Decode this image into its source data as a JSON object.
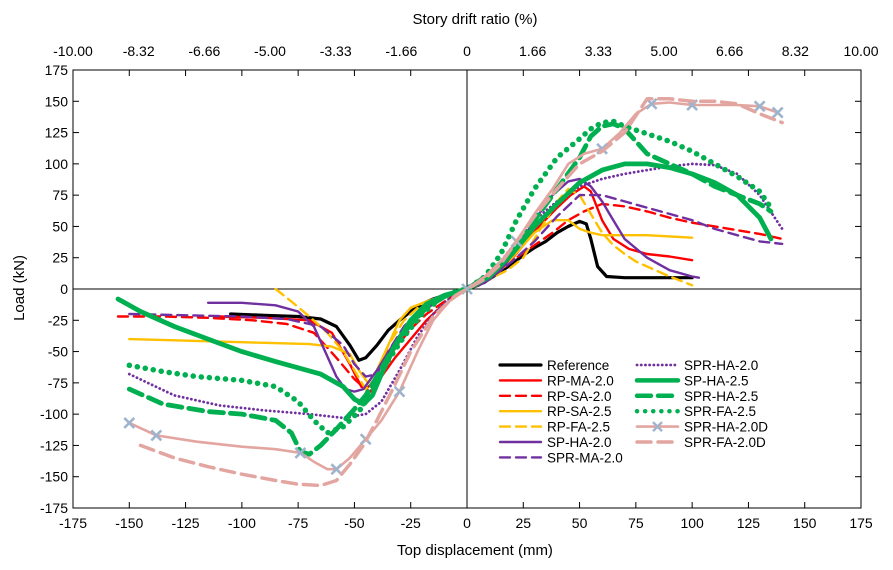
{
  "chart_data": {
    "type": "line",
    "title": "",
    "xlabel": "Top displacement (mm)",
    "ylabel": "Load (kN)",
    "x2label": "Story drift ratio (%)",
    "xlim": [
      -175,
      175
    ],
    "ylim": [
      -175,
      175
    ],
    "x_ticks": [
      "-175",
      "-150",
      "-125",
      "-100",
      "-75",
      "-50",
      "-25",
      "0",
      "25",
      "50",
      "75",
      "100",
      "125",
      "150",
      "175"
    ],
    "y_ticks": [
      "-175",
      "-150",
      "-125",
      "-100",
      "-75",
      "-50",
      "-25",
      "0",
      "25",
      "50",
      "75",
      "100",
      "125",
      "150",
      "175"
    ],
    "x2_ticks": [
      "-10.00",
      "-8.32",
      "-6.66",
      "-5.00",
      "-3.33",
      "-1.66",
      "0",
      "1.66",
      "3.33",
      "5.00",
      "6.66",
      "8.32",
      "10.00"
    ],
    "grid": false,
    "legend_position": "bottom-right",
    "series": [
      {
        "name": "Reference",
        "color": "#000000",
        "style": "solid",
        "width": 3.2,
        "marker": "",
        "x": [
          -105,
          -90,
          -75,
          -65,
          -58,
          -52,
          -48,
          -45,
          -40,
          -35,
          -30,
          -25,
          -20,
          -15,
          -10,
          -5,
          0,
          5,
          10,
          15,
          20,
          25,
          30,
          35,
          40,
          45,
          50,
          53,
          55,
          58,
          62,
          70,
          80,
          90,
          100
        ],
        "y": [
          -20,
          -21,
          -22,
          -24,
          -30,
          -45,
          -57,
          -55,
          -45,
          -33,
          -25,
          -18,
          -12,
          -8,
          -5,
          -2,
          0,
          3,
          8,
          14,
          20,
          27,
          33,
          38,
          45,
          50,
          54,
          52,
          40,
          18,
          10,
          9,
          9,
          9,
          9
        ]
      },
      {
        "name": "RP-MA-2.0",
        "color": "#ff0000",
        "style": "solid",
        "width": 2.4,
        "marker": "",
        "x": [
          -110,
          -90,
          -70,
          -60,
          -52,
          -47,
          -43,
          -38,
          -32,
          -25,
          -18,
          -12,
          -6,
          0,
          6,
          12,
          18,
          25,
          32,
          40,
          46,
          52,
          55,
          60,
          65,
          72,
          80,
          90,
          100
        ],
        "y": [
          -22,
          -23,
          -25,
          -35,
          -60,
          -78,
          -82,
          -70,
          -55,
          -40,
          -25,
          -15,
          -7,
          0,
          5,
          12,
          20,
          35,
          50,
          65,
          75,
          82,
          78,
          55,
          40,
          32,
          28,
          26,
          23
        ]
      },
      {
        "name": "RP-SA-2.0",
        "color": "#ff0000",
        "style": "dash",
        "width": 2.4,
        "marker": "",
        "x": [
          -155,
          -135,
          -115,
          -95,
          -80,
          -68,
          -58,
          -50,
          -45,
          -40,
          -33,
          -25,
          -18,
          -10,
          -5,
          0,
          5,
          10,
          15,
          22,
          30,
          38,
          45,
          52,
          60,
          70,
          80,
          90,
          100,
          110,
          120,
          130,
          140
        ],
        "y": [
          -22,
          -22,
          -23,
          -25,
          -28,
          -35,
          -55,
          -72,
          -80,
          -72,
          -50,
          -32,
          -20,
          -10,
          -4,
          0,
          3,
          8,
          15,
          25,
          35,
          45,
          55,
          62,
          68,
          66,
          62,
          57,
          53,
          50,
          47,
          44,
          40
        ]
      },
      {
        "name": "RP-SA-2.5",
        "color": "#ffc000",
        "style": "solid",
        "width": 2.4,
        "marker": "",
        "x": [
          -150,
          -130,
          -110,
          -90,
          -70,
          -60,
          -52,
          -48,
          -44,
          -40,
          -35,
          -30,
          -25,
          -18,
          -10,
          -5,
          0,
          5,
          10,
          15,
          20,
          25,
          30,
          38,
          45,
          50,
          55,
          60,
          70,
          80,
          90,
          100
        ],
        "y": [
          -40,
          -41,
          -42,
          -43,
          -44,
          -46,
          -52,
          -65,
          -75,
          -65,
          -45,
          -25,
          -15,
          -10,
          -5,
          -2,
          0,
          3,
          8,
          15,
          25,
          35,
          45,
          55,
          55,
          48,
          45,
          43,
          43,
          43,
          42,
          41
        ]
      },
      {
        "name": "RP-FA-2.5",
        "color": "#ffc000",
        "style": "dash",
        "width": 2.4,
        "marker": "",
        "x": [
          -85,
          -78,
          -70,
          -62,
          -55,
          -50,
          -45,
          -40,
          -35,
          -28,
          -20,
          -10,
          0,
          10,
          18,
          25,
          30,
          35,
          40,
          45,
          50,
          55,
          60,
          65,
          70,
          75,
          80,
          90,
          100
        ],
        "y": [
          0,
          -10,
          -22,
          -35,
          -50,
          -65,
          -80,
          -70,
          -45,
          -25,
          -12,
          -5,
          0,
          8,
          15,
          25,
          40,
          55,
          70,
          80,
          75,
          60,
          45,
          35,
          28,
          22,
          18,
          10,
          3
        ]
      },
      {
        "name": "SP-HA-2.0",
        "color": "#7030a0",
        "style": "solid",
        "width": 2.4,
        "marker": "",
        "x": [
          -115,
          -100,
          -85,
          -75,
          -68,
          -63,
          -58,
          -54,
          -50,
          -46,
          -40,
          -32,
          -25,
          -15,
          -8,
          0,
          8,
          15,
          22,
          30,
          38,
          45,
          50,
          55,
          60,
          65,
          70,
          80,
          90,
          100,
          103
        ],
        "y": [
          -11,
          -11,
          -13,
          -18,
          -30,
          -50,
          -70,
          -80,
          -82,
          -80,
          -65,
          -42,
          -25,
          -12,
          -5,
          0,
          5,
          15,
          32,
          55,
          75,
          86,
          88,
          82,
          70,
          55,
          40,
          25,
          15,
          10,
          9
        ]
      },
      {
        "name": "SPR-MA-2.0",
        "color": "#7030a0",
        "style": "dash",
        "width": 2.4,
        "marker": "",
        "x": [
          -150,
          -125,
          -100,
          -80,
          -65,
          -55,
          -50,
          -45,
          -40,
          -35,
          -28,
          -20,
          -10,
          0,
          10,
          20,
          30,
          40,
          50,
          60,
          70,
          80,
          90,
          100,
          110,
          120,
          130,
          140
        ],
        "y": [
          -20,
          -21,
          -22,
          -24,
          -30,
          -45,
          -60,
          -70,
          -68,
          -50,
          -30,
          -15,
          -6,
          0,
          8,
          22,
          38,
          58,
          75,
          75,
          70,
          65,
          60,
          55,
          48,
          43,
          38,
          36
        ]
      },
      {
        "name": "SPR-HA-2.0",
        "color": "#7030a0",
        "style": "dot",
        "width": 2.8,
        "marker": "",
        "x": [
          -150,
          -130,
          -110,
          -90,
          -70,
          -55,
          -45,
          -38,
          -30,
          -22,
          -15,
          -8,
          0,
          8,
          15,
          22,
          30,
          40,
          50,
          60,
          70,
          80,
          90,
          100,
          110,
          120,
          130,
          140
        ],
        "y": [
          -68,
          -85,
          -93,
          -97,
          -100,
          -103,
          -100,
          -90,
          -65,
          -38,
          -20,
          -8,
          0,
          10,
          22,
          38,
          55,
          70,
          82,
          88,
          92,
          95,
          98,
          100,
          99,
          92,
          75,
          48
        ]
      },
      {
        "name": "SP-HA-2.5",
        "color": "#00b050",
        "style": "solid",
        "width": 4.8,
        "marker": "",
        "x": [
          -155,
          -145,
          -130,
          -115,
          -100,
          -85,
          -75,
          -65,
          -55,
          -50,
          -46,
          -42,
          -38,
          -32,
          -25,
          -18,
          -10,
          0,
          10,
          20,
          30,
          40,
          50,
          60,
          70,
          80,
          90,
          100,
          110,
          120,
          130,
          135
        ],
        "y": [
          -8,
          -18,
          -30,
          -40,
          -50,
          -58,
          -63,
          -68,
          -78,
          -88,
          -92,
          -85,
          -68,
          -45,
          -25,
          -12,
          -5,
          0,
          10,
          28,
          50,
          68,
          85,
          95,
          100,
          100,
          97,
          92,
          85,
          75,
          57,
          40
        ]
      },
      {
        "name": "SPR-HA-2.5",
        "color": "#00b050",
        "style": "dash",
        "width": 4.8,
        "marker": "",
        "x": [
          -150,
          -135,
          -115,
          -100,
          -85,
          -78,
          -74,
          -70,
          -65,
          -58,
          -50,
          -45,
          -40,
          -33,
          -25,
          -18,
          -10,
          0,
          10,
          20,
          30,
          40,
          50,
          55,
          60,
          65,
          70,
          75,
          80,
          90,
          100,
          110,
          120,
          130,
          135
        ],
        "y": [
          -80,
          -92,
          -98,
          -100,
          -105,
          -115,
          -130,
          -132,
          -125,
          -112,
          -96,
          -85,
          -70,
          -48,
          -28,
          -15,
          -6,
          0,
          12,
          30,
          55,
          80,
          105,
          122,
          130,
          132,
          128,
          118,
          108,
          100,
          92,
          82,
          75,
          68,
          62
        ]
      },
      {
        "name": "SPR-FA-2.5",
        "color": "#00b050",
        "style": "dot",
        "width": 5.5,
        "marker": "",
        "x": [
          -150,
          -135,
          -120,
          -100,
          -85,
          -75,
          -68,
          -62,
          -55,
          -48,
          -42,
          -36,
          -28,
          -20,
          -12,
          -5,
          0,
          8,
          15,
          22,
          30,
          40,
          50,
          55,
          60,
          65,
          70,
          80,
          90,
          100,
          110,
          120,
          130,
          135
        ],
        "y": [
          -61,
          -66,
          -70,
          -73,
          -78,
          -90,
          -105,
          -115,
          -110,
          -98,
          -82,
          -60,
          -38,
          -20,
          -8,
          -2,
          0,
          10,
          28,
          55,
          80,
          105,
          120,
          128,
          133,
          134,
          130,
          124,
          118,
          110,
          100,
          90,
          78,
          65
        ]
      },
      {
        "name": "SPR-HA-2.0D",
        "color": "#e3a5a0",
        "style": "solid",
        "width": 2.6,
        "marker": "x",
        "x": [
          -150,
          -138,
          -120,
          -100,
          -85,
          -74,
          -68,
          -62,
          -58,
          -52,
          -45,
          -38,
          -30,
          -22,
          -15,
          -8,
          0,
          8,
          15,
          22,
          30,
          38,
          45,
          52,
          60,
          68,
          75,
          82,
          90,
          100,
          110,
          120,
          130,
          138
        ],
        "y": [
          -107,
          -117,
          -122,
          -126,
          -128,
          -131,
          -138,
          -144,
          -144,
          -135,
          -120,
          -105,
          -82,
          -50,
          -25,
          -10,
          0,
          10,
          22,
          38,
          60,
          80,
          100,
          108,
          112,
          125,
          140,
          148,
          149,
          147,
          147,
          147,
          146,
          141
        ],
        "marker_idx": [
          0,
          1,
          5,
          8,
          10,
          12,
          16,
          19,
          24,
          27,
          29,
          32,
          33
        ]
      },
      {
        "name": "SPR-FA-2.0D",
        "color": "#e3a5a0",
        "style": "dash",
        "width": 3.5,
        "marker": "",
        "x": [
          -145,
          -130,
          -115,
          -100,
          -85,
          -75,
          -65,
          -58,
          -52,
          -46,
          -40,
          -33,
          -25,
          -15,
          -5,
          0,
          8,
          15,
          22,
          30,
          40,
          50,
          60,
          70,
          80,
          90,
          100,
          110,
          120,
          130,
          140
        ],
        "y": [
          -125,
          -135,
          -142,
          -148,
          -153,
          -156,
          -157,
          -153,
          -140,
          -125,
          -105,
          -80,
          -50,
          -22,
          -5,
          0,
          8,
          20,
          38,
          58,
          80,
          100,
          110,
          125,
          152,
          152,
          150,
          150,
          148,
          140,
          133
        ]
      }
    ]
  }
}
